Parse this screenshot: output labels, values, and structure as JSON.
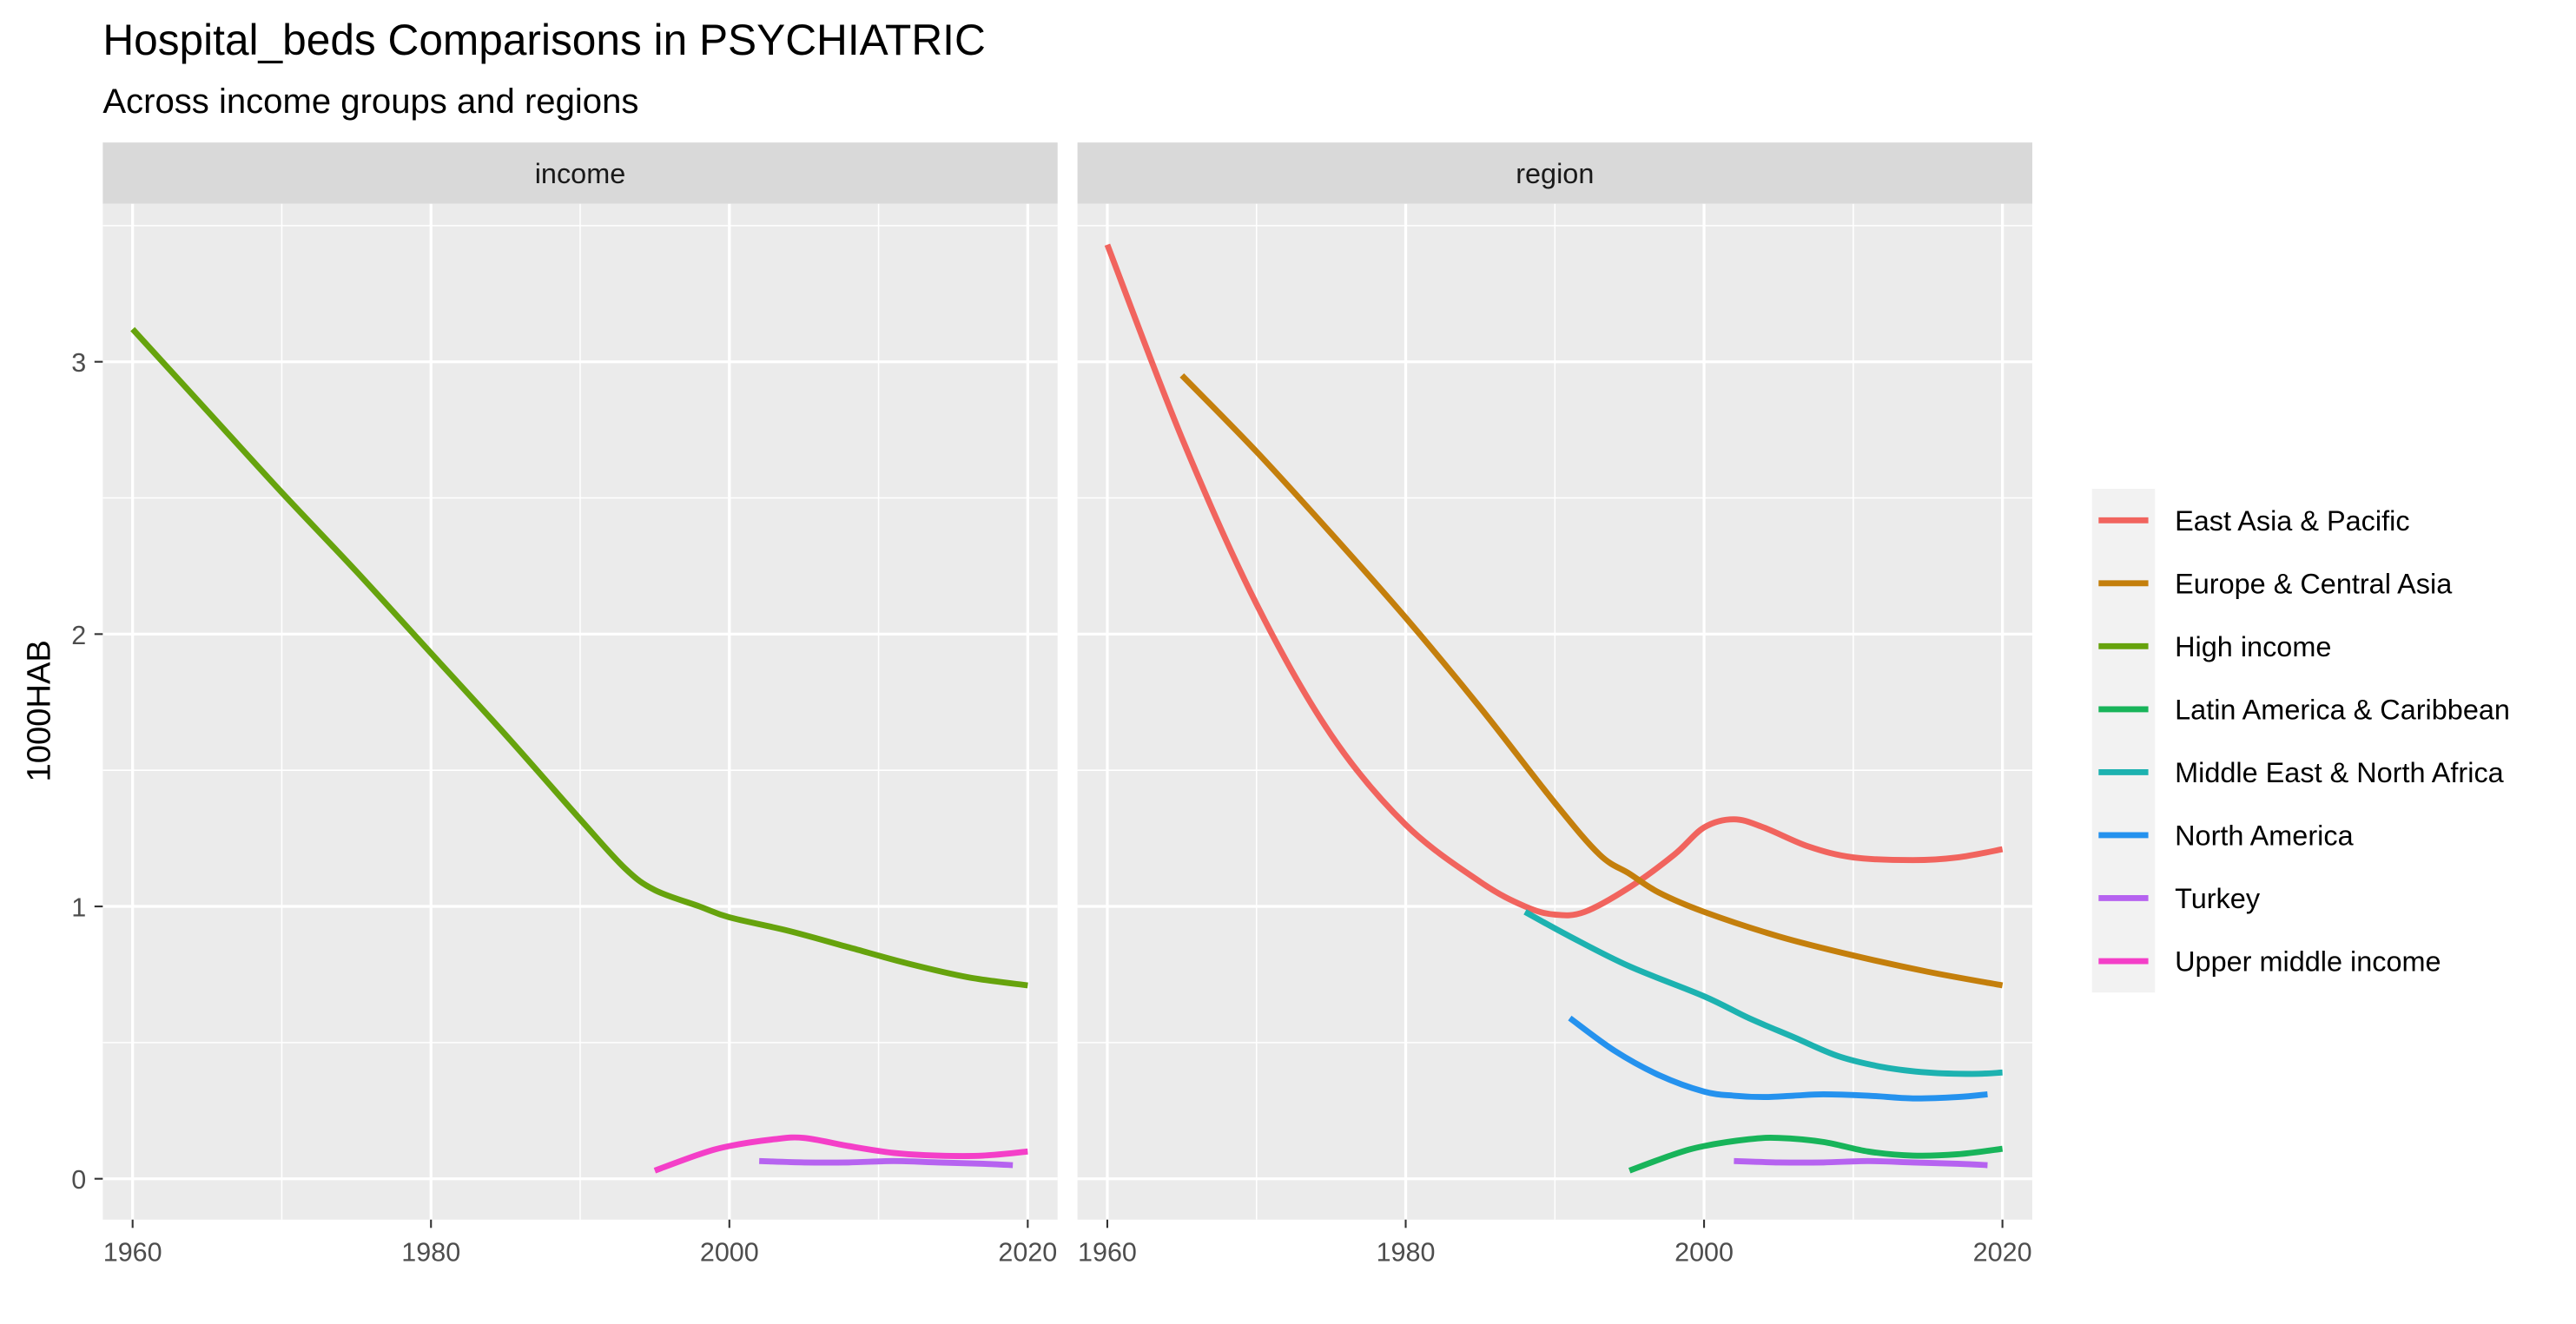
{
  "chart_data": {
    "type": "line",
    "title": "Hospital_beds Comparisons in PSYCHIATRIC",
    "subtitle": "Across income groups and regions",
    "xlabel": "",
    "ylabel": "1000HAB",
    "xlim": [
      1958,
      2022
    ],
    "ylim": [
      -0.15,
      3.58
    ],
    "x_ticks": [
      1960,
      1980,
      2000,
      2020
    ],
    "y_ticks": [
      0,
      1,
      2,
      3
    ],
    "grid": true,
    "legend_position": "right",
    "legend": [
      {
        "name": "East Asia & Pacific",
        "color": "#F8766D"
      },
      {
        "name": "Europe & Central Asia",
        "color": "#C49A00"
      },
      {
        "name": "High income",
        "color": "#53B400"
      },
      {
        "name": "Latin America & Caribbean",
        "color": "#00C094"
      },
      {
        "name": "Middle East & North Africa",
        "color": "#00B6EB"
      },
      {
        "name": "North America",
        "color": "#A58AFF"
      },
      {
        "name": "Turkey",
        "color": "#FB61D7"
      },
      {
        "name": "Upper middle income",
        "color": "#FF4FBF"
      }
    ],
    "legend_colors_observed": {
      "East Asia & Pacific": "#F1645E",
      "Europe & Central Asia": "#C47F0C",
      "High income": "#66A30D",
      "Latin America & Caribbean": "#18B45A",
      "Middle East & North Africa": "#1DB2B0",
      "North America": "#2592EE",
      "Turkey": "#B663F0",
      "Upper middle income": "#F43FC8"
    },
    "panels": [
      {
        "strip": "income",
        "series": [
          {
            "name": "High income",
            "x": [
              1960,
              1965,
              1970,
              1975,
              1980,
              1985,
              1990,
              1993,
              1995,
              1998,
              2000,
              2004,
              2008,
              2012,
              2016,
              2020
            ],
            "y": [
              3.12,
              2.82,
              2.52,
              2.23,
              1.93,
              1.63,
              1.32,
              1.14,
              1.06,
              1.0,
              0.96,
              0.91,
              0.85,
              0.79,
              0.74,
              0.71
            ]
          },
          {
            "name": "Upper middle income",
            "x": [
              1995,
              1998,
              2000,
              2003,
              2005,
              2008,
              2011,
              2014,
              2017,
              2020
            ],
            "y": [
              0.03,
              0.09,
              0.12,
              0.145,
              0.15,
              0.12,
              0.095,
              0.085,
              0.085,
              0.1
            ]
          },
          {
            "name": "Turkey",
            "x": [
              2002,
              2005,
              2008,
              2011,
              2014,
              2017,
              2019
            ],
            "y": [
              0.065,
              0.06,
              0.06,
              0.065,
              0.06,
              0.055,
              0.05
            ]
          }
        ]
      },
      {
        "strip": "region",
        "series": [
          {
            "name": "East Asia & Pacific",
            "x": [
              1960,
              1965,
              1970,
              1975,
              1980,
              1985,
              1988,
              1990,
              1992,
              1995,
              1998,
              2000,
              2002,
              2004,
              2007,
              2010,
              2014,
              2017,
              2020
            ],
            "y": [
              3.43,
              2.72,
              2.11,
              1.63,
              1.3,
              1.09,
              1.0,
              0.97,
              0.98,
              1.07,
              1.19,
              1.29,
              1.32,
              1.29,
              1.22,
              1.18,
              1.17,
              1.18,
              1.21
            ]
          },
          {
            "name": "Europe & Central Asia",
            "x": [
              1965,
              1970,
              1975,
              1980,
              1985,
              1990,
              1993,
              1995,
              1997,
              2000,
              2005,
              2010,
              2015,
              2020
            ],
            "y": [
              2.95,
              2.67,
              2.37,
              2.06,
              1.73,
              1.38,
              1.19,
              1.12,
              1.05,
              0.98,
              0.89,
              0.82,
              0.76,
              0.71
            ]
          },
          {
            "name": "Latin America & Caribbean",
            "x": [
              1995,
              1998,
              2000,
              2003,
              2005,
              2008,
              2011,
              2014,
              2017,
              2020
            ],
            "y": [
              0.03,
              0.09,
              0.12,
              0.145,
              0.15,
              0.135,
              0.1,
              0.085,
              0.09,
              0.11
            ]
          },
          {
            "name": "Middle East & North Africa",
            "x": [
              1988,
              1991,
              1995,
              2000,
              2003,
              2006,
              2009,
              2012,
              2015,
              2018,
              2020
            ],
            "y": [
              0.98,
              0.89,
              0.78,
              0.67,
              0.59,
              0.52,
              0.45,
              0.41,
              0.39,
              0.385,
              0.39
            ]
          },
          {
            "name": "North America",
            "x": [
              1991,
              1994,
              1997,
              2000,
              2002,
              2004,
              2006,
              2008,
              2011,
              2014,
              2017,
              2019
            ],
            "y": [
              0.59,
              0.47,
              0.38,
              0.32,
              0.305,
              0.3,
              0.305,
              0.31,
              0.305,
              0.295,
              0.3,
              0.31
            ]
          },
          {
            "name": "Turkey",
            "x": [
              2002,
              2005,
              2008,
              2011,
              2014,
              2017,
              2019
            ],
            "y": [
              0.065,
              0.06,
              0.06,
              0.065,
              0.06,
              0.055,
              0.05
            ]
          }
        ]
      }
    ]
  }
}
